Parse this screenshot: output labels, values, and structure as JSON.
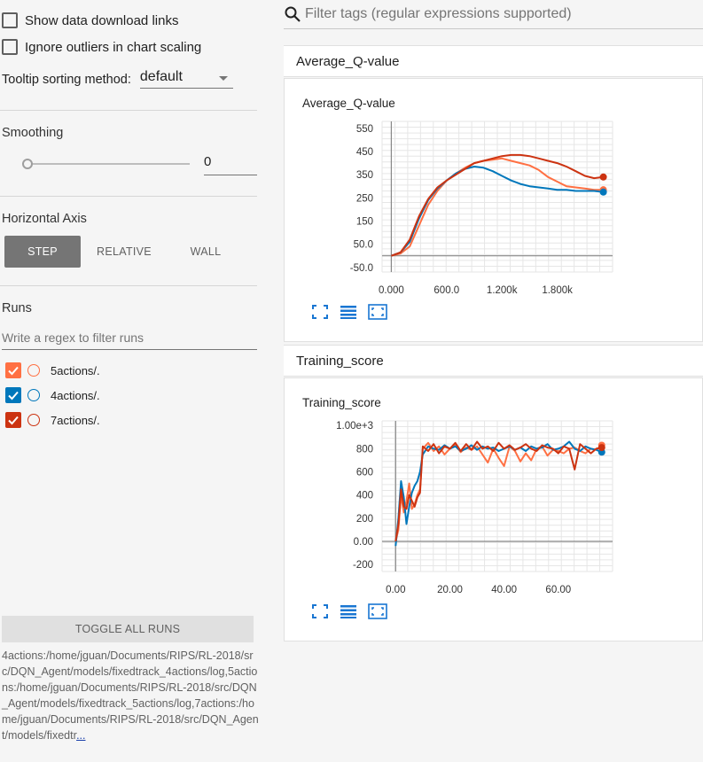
{
  "sidebar": {
    "show_download_links": "Show data download links",
    "ignore_outliers": "Ignore outliers in chart scaling",
    "tooltip_label": "Tooltip sorting method:",
    "tooltip_value": "default",
    "smoothing_title": "Smoothing",
    "smoothing_value": "0",
    "smoothing_level": 0,
    "horizontal_axis_title": "Horizontal Axis",
    "axis_step": "STEP",
    "axis_relative": "RELATIVE",
    "axis_wall": "WALL",
    "runs_title": "Runs",
    "runs_filter_placeholder": "Write a regex to filter runs",
    "runs": [
      {
        "label": "5actions/.",
        "color": "#ff7043",
        "checked": true
      },
      {
        "label": "4actions/.",
        "color": "#0077bb",
        "checked": true
      },
      {
        "label": "7actions/.",
        "color": "#cc3311",
        "checked": true
      }
    ],
    "toggle_all": "TOGGLE ALL RUNS",
    "run_paths": "4actions:/home/jguan/Documents/RIPS/RL-2018/src/DQN_Agent/models/fixedtrack_4actions/log,5actions:/home/jguan/Documents/RIPS/RL-2018/src/DQN_Agent/models/fixedtrack_5actions/log,7actions:/home/jguan/Documents/RIPS/RL-2018/src/DQN_Agent/models/fixedtr",
    "run_paths_ellipsis": "..."
  },
  "main": {
    "filter_placeholder": "Filter tags (regular expressions supported)",
    "cards": [
      {
        "header": "Average_Q-value"
      },
      {
        "header": "Training_score"
      }
    ]
  },
  "icons": [
    "search-icon",
    "fit-domain-icon",
    "data-table-icon",
    "expand-icon",
    "check-icon"
  ],
  "chart_data": [
    {
      "type": "line",
      "title": "Average_Q-value",
      "xlabel": "",
      "ylabel": "",
      "x_ticks": [
        "0.000",
        "600.0",
        "1.200k",
        "1.800k"
      ],
      "y_ticks": [
        "-50.0",
        "50.0",
        "150",
        "250",
        "350",
        "450",
        "550"
      ],
      "xlim": [
        -100,
        2400
      ],
      "ylim": [
        -70,
        580
      ],
      "grid": true,
      "series": [
        {
          "name": "5actions/.",
          "color": "#ff7043",
          "x": [
            0,
            100,
            200,
            300,
            400,
            500,
            600,
            700,
            800,
            900,
            1000,
            1100,
            1200,
            1300,
            1400,
            1500,
            1600,
            1700,
            1800,
            1900,
            2000,
            2100,
            2200,
            2300
          ],
          "y": [
            0,
            10,
            40,
            130,
            220,
            280,
            325,
            355,
            380,
            400,
            410,
            415,
            420,
            410,
            400,
            390,
            370,
            340,
            320,
            300,
            295,
            290,
            285,
            285
          ]
        },
        {
          "name": "4actions/.",
          "color": "#0077bb",
          "x": [
            0,
            100,
            200,
            300,
            400,
            500,
            600,
            700,
            800,
            900,
            1000,
            1100,
            1200,
            1300,
            1400,
            1500,
            1600,
            1700,
            1800,
            1900,
            2000,
            2100,
            2200,
            2300
          ],
          "y": [
            0,
            15,
            60,
            160,
            240,
            290,
            325,
            355,
            375,
            385,
            380,
            365,
            345,
            325,
            310,
            300,
            295,
            290,
            285,
            285,
            280,
            280,
            280,
            275
          ]
        },
        {
          "name": "7actions/.",
          "color": "#cc3311",
          "x": [
            0,
            100,
            200,
            300,
            400,
            500,
            600,
            700,
            800,
            900,
            1000,
            1100,
            1200,
            1300,
            1400,
            1500,
            1600,
            1700,
            1800,
            1900,
            2000,
            2100,
            2200,
            2300
          ],
          "y": [
            0,
            15,
            70,
            170,
            245,
            295,
            325,
            350,
            375,
            400,
            410,
            420,
            430,
            435,
            435,
            430,
            420,
            410,
            400,
            385,
            365,
            345,
            335,
            340
          ]
        }
      ]
    },
    {
      "type": "line",
      "title": "Training_score",
      "xlabel": "",
      "ylabel": "",
      "x_ticks": [
        "0.00",
        "20.00",
        "40.00",
        "60.00"
      ],
      "y_ticks": [
        "-200",
        "0.00",
        "200",
        "400",
        "600",
        "800",
        "1.00e+3"
      ],
      "xlim": [
        -5,
        80
      ],
      "ylim": [
        -260,
        1040
      ],
      "grid": true,
      "series": [
        {
          "name": "5actions/.",
          "color": "#ff7043",
          "x": [
            0,
            1,
            2,
            3,
            4,
            5,
            6,
            7,
            8,
            9,
            10,
            12,
            14,
            16,
            18,
            20,
            22,
            24,
            26,
            28,
            30,
            32,
            34,
            36,
            38,
            40,
            42,
            44,
            46,
            48,
            50,
            52,
            54,
            56,
            58,
            60,
            62,
            64,
            66,
            68,
            70,
            72,
            74,
            76
          ],
          "y": [
            0,
            100,
            400,
            250,
            350,
            500,
            280,
            320,
            400,
            450,
            800,
            850,
            780,
            820,
            750,
            800,
            830,
            770,
            810,
            790,
            820,
            750,
            680,
            800,
            720,
            650,
            820,
            780,
            690,
            760,
            700,
            800,
            820,
            740,
            790,
            780,
            760,
            800,
            810,
            780,
            760,
            800,
            790,
            830
          ]
        },
        {
          "name": "4actions/.",
          "color": "#0077bb",
          "x": [
            0,
            1,
            2,
            3,
            4,
            5,
            6,
            7,
            8,
            9,
            10,
            12,
            14,
            16,
            18,
            20,
            22,
            24,
            26,
            28,
            30,
            32,
            34,
            36,
            38,
            40,
            42,
            44,
            46,
            48,
            50,
            52,
            54,
            56,
            58,
            60,
            62,
            64,
            66,
            68,
            70,
            72,
            74,
            76
          ],
          "y": [
            -40,
            200,
            520,
            380,
            150,
            300,
            420,
            480,
            520,
            600,
            750,
            820,
            800,
            790,
            830,
            800,
            820,
            780,
            800,
            830,
            790,
            820,
            800,
            810,
            780,
            800,
            820,
            790,
            810,
            780,
            820,
            800,
            810,
            840,
            790,
            800,
            820,
            860,
            800,
            780,
            820,
            800,
            790,
            770
          ]
        },
        {
          "name": "7actions/.",
          "color": "#cc3311",
          "x": [
            0,
            1,
            2,
            3,
            4,
            5,
            6,
            7,
            8,
            9,
            10,
            12,
            14,
            16,
            18,
            20,
            22,
            24,
            26,
            28,
            30,
            32,
            34,
            36,
            38,
            40,
            42,
            44,
            46,
            48,
            50,
            52,
            54,
            56,
            58,
            60,
            62,
            64,
            66,
            68,
            70,
            72,
            74,
            76
          ],
          "y": [
            0,
            150,
            450,
            300,
            280,
            400,
            350,
            300,
            380,
            420,
            820,
            780,
            840,
            760,
            820,
            800,
            850,
            780,
            840,
            790,
            860,
            800,
            820,
            780,
            850,
            800,
            830,
            790,
            810,
            840,
            800,
            780,
            830,
            810,
            800,
            760,
            820,
            800,
            620,
            840,
            800,
            760,
            800,
            810
          ]
        }
      ]
    }
  ]
}
